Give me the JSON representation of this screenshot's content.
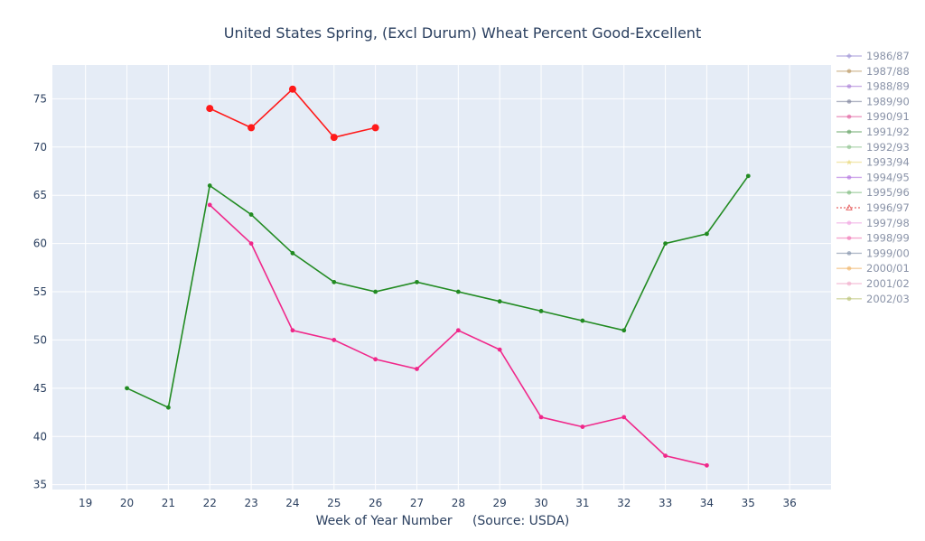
{
  "chart_data": {
    "type": "line",
    "title": "United States Spring, (Excl Durum) Wheat Percent Good-Excellent",
    "xlabel": "Week of Year Number     (Source: USDA)",
    "ylabel": "",
    "xlim": [
      18.2,
      37.0
    ],
    "ylim": [
      34.5,
      78.5
    ],
    "x_ticks": [
      19,
      20,
      21,
      22,
      23,
      24,
      25,
      26,
      27,
      28,
      29,
      30,
      31,
      32,
      33,
      34,
      35,
      36
    ],
    "y_ticks": [
      35,
      40,
      45,
      50,
      55,
      60,
      65,
      70,
      75
    ],
    "grid": true,
    "legend_position": "right",
    "plot_background": "#e5ecf6",
    "series": [
      {
        "name": "1986/87",
        "color": "#9b8fd6",
        "marker": "diamond",
        "x": [],
        "y": []
      },
      {
        "name": "1987/88",
        "color": "#b8955e",
        "marker": "circle",
        "x": [],
        "y": []
      },
      {
        "name": "1988/89",
        "color": "#a67ad6",
        "marker": "circle",
        "x": [],
        "y": []
      },
      {
        "name": "1989/90",
        "color": "#7a7f99",
        "marker": "circle",
        "x": [],
        "y": []
      },
      {
        "name": "1990/91",
        "color": "#e0589a",
        "marker": "circle",
        "x": [],
        "y": []
      },
      {
        "name": "1991/92",
        "color": "#5fa05f",
        "marker": "circle",
        "x": [],
        "y": []
      },
      {
        "name": "1992/93",
        "color": "#88c088",
        "marker": "circle",
        "x": [],
        "y": []
      },
      {
        "name": "1993/94",
        "color": "#e8d87a",
        "marker": "star",
        "x": [],
        "y": []
      },
      {
        "name": "1994/95",
        "color": "#b070e0",
        "marker": "circle",
        "x": [],
        "y": []
      },
      {
        "name": "1995/96",
        "color": "#78b878",
        "marker": "circle",
        "x": [],
        "y": []
      },
      {
        "name": "1996/97",
        "color": "#e03030",
        "marker": "triangle",
        "dashed": true,
        "x": [],
        "y": []
      },
      {
        "name": "1997/98",
        "color": "#f0a0e0",
        "marker": "circle",
        "x": [],
        "y": []
      },
      {
        "name": "1998/99",
        "color": "#f070b0",
        "marker": "circle",
        "x": [],
        "y": []
      },
      {
        "name": "1999/00",
        "color": "#8090a8",
        "marker": "circle",
        "x": [],
        "y": []
      },
      {
        "name": "2000/01",
        "color": "#f0b060",
        "marker": "circle",
        "x": [],
        "y": []
      },
      {
        "name": "2001/02",
        "color": "#f0a8c8",
        "marker": "circle",
        "x": [],
        "y": []
      },
      {
        "name": "2002/03",
        "color": "#b8c070",
        "marker": "circle",
        "x": [],
        "y": []
      },
      {
        "name": "",
        "color": "#ff1a1a",
        "marker": "circle",
        "marker_size": "large",
        "in_legend": false,
        "x": [
          22,
          23,
          24,
          25,
          26
        ],
        "y": [
          74,
          72,
          76,
          71,
          72
        ]
      },
      {
        "name": "",
        "color": "#228b22",
        "marker": "circle",
        "in_legend": false,
        "x": [
          20,
          21,
          22,
          23,
          24,
          25,
          26,
          27,
          28,
          29,
          30,
          31,
          32,
          33,
          34,
          35
        ],
        "y": [
          45,
          43,
          66,
          63,
          59,
          56,
          55,
          56,
          55,
          54,
          53,
          52,
          51,
          60,
          61,
          67
        ]
      },
      {
        "name": "",
        "color": "#f0288a",
        "marker": "circle",
        "in_legend": false,
        "x": [
          22,
          23,
          24,
          25,
          26,
          27,
          28,
          29,
          30,
          31,
          32,
          33,
          34
        ],
        "y": [
          64,
          60,
          51,
          50,
          48,
          47,
          51,
          49,
          42,
          41,
          42,
          38,
          37
        ]
      }
    ]
  }
}
